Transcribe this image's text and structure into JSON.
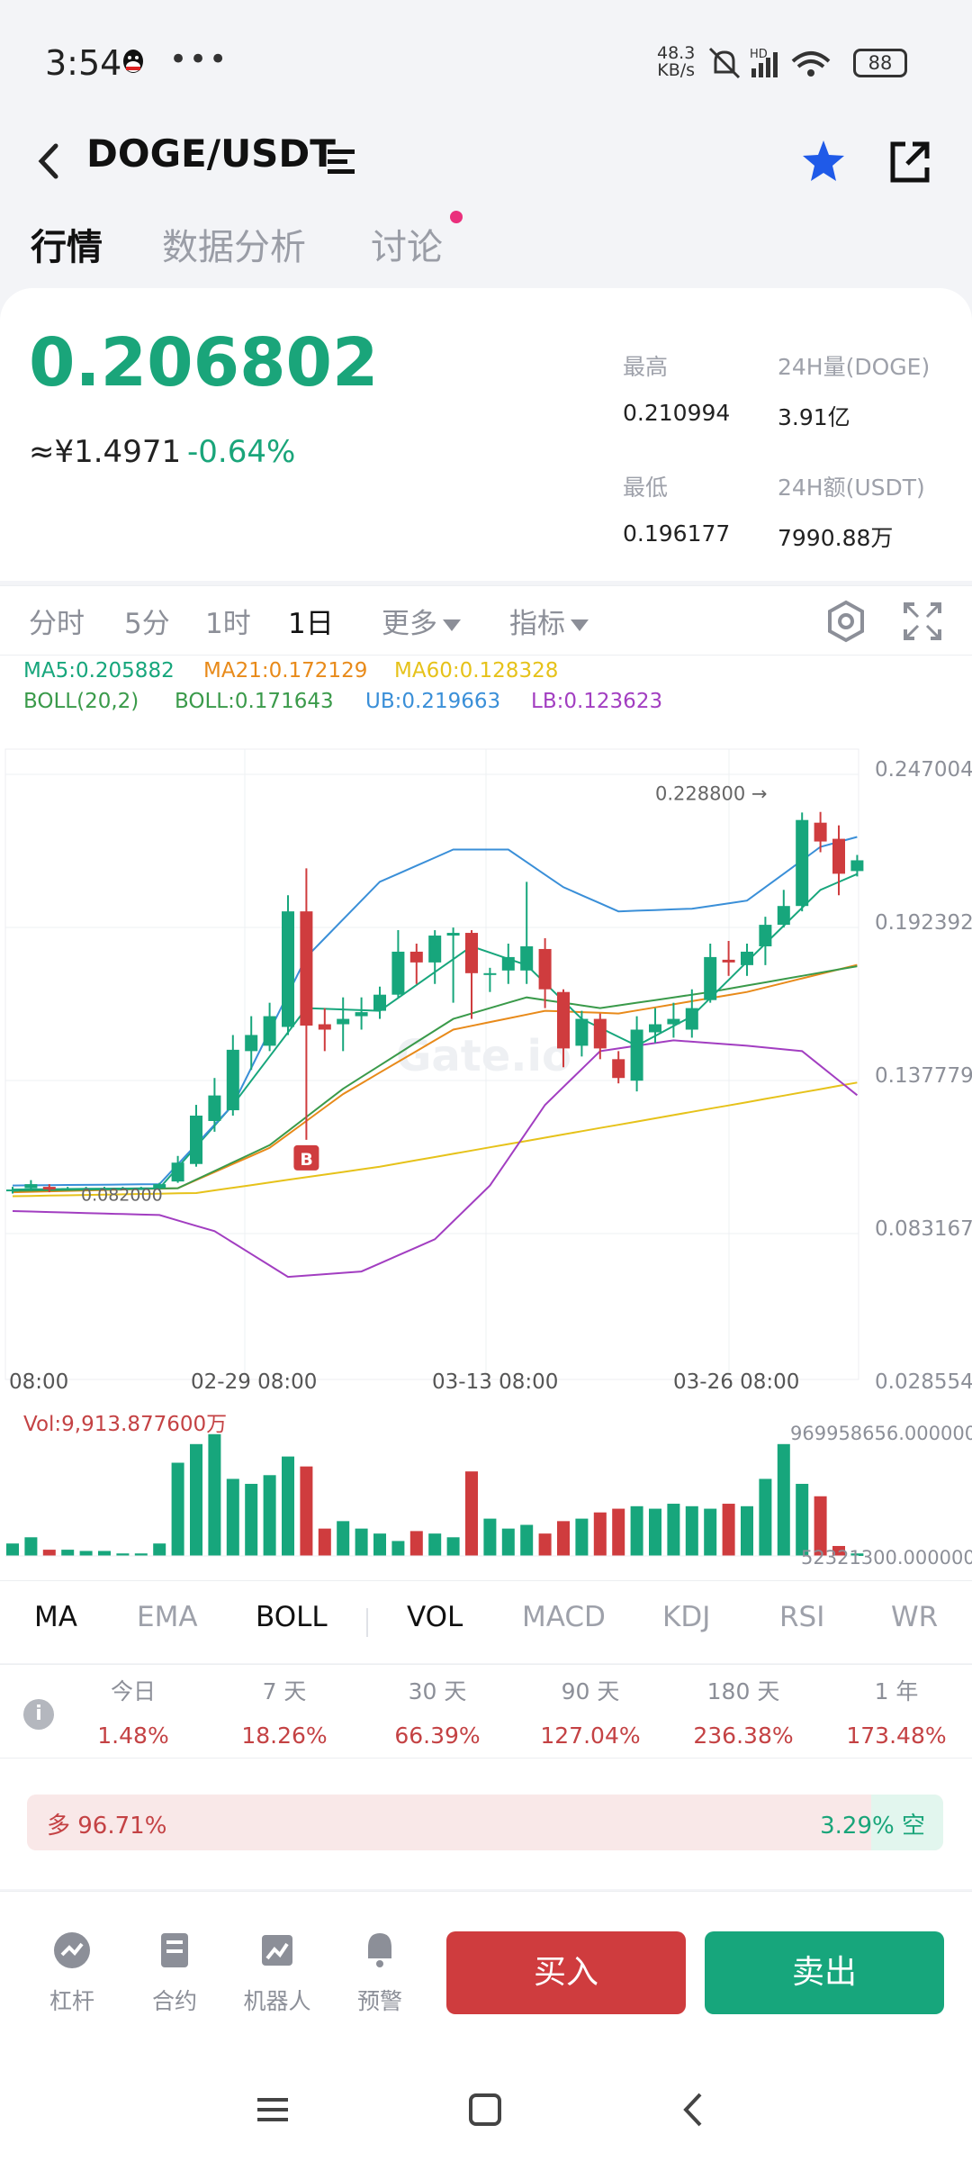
{
  "status": {
    "time": "3:54",
    "speed_value": "48.3",
    "speed_unit": "KB/s",
    "battery": "88"
  },
  "header": {
    "pair": "DOGE/USDT"
  },
  "tabs": [
    {
      "label": "行情"
    },
    {
      "label": "数据分析"
    },
    {
      "label": "讨论"
    }
  ],
  "price": {
    "last": "0.206802",
    "cny": "≈¥1.4971",
    "change": "-0.64%",
    "high_label": "最高",
    "high": "0.210994",
    "low_label": "最低",
    "low": "0.196177",
    "vol_label": "24H量(DOGE)",
    "vol": "3.91亿",
    "amt_label": "24H额(USDT)",
    "amt": "7990.88万"
  },
  "timeframes": [
    {
      "label": "分时"
    },
    {
      "label": "5分"
    },
    {
      "label": "1时"
    },
    {
      "label": "1日"
    },
    {
      "label": "更多"
    },
    {
      "label": "指标"
    }
  ],
  "indicators": {
    "ma5": "MA5:0.205882",
    "ma21": "MA21:0.172129",
    "ma60": "MA60:0.128328",
    "boll": "BOLL(20,2)",
    "boll_mid": "BOLL:0.171643",
    "ub": "UB:0.219663",
    "lb": "LB:0.123623"
  },
  "colors": {
    "up": "#17a67c",
    "down": "#cf3c3e",
    "ma5": "#17a67c",
    "ma21": "#e88a1a",
    "ma60": "#e6c21a",
    "ub": "#3a8fd8",
    "lb": "#a23ec1",
    "mid": "#3a9a4a"
  },
  "chart_data": {
    "type": "candlestick",
    "y_ticks": [
      "0.247004",
      "0.192392",
      "0.137779",
      "0.083167",
      "0.028554"
    ],
    "x_ticks": [
      "08:00",
      "02-29 08:00",
      "03-13 08:00",
      "03-26 08:00"
    ],
    "ylim": [
      0.028554,
      0.247004
    ],
    "high_marker": "0.228800 →",
    "low_marker": "0.082000",
    "buy_marker": "B",
    "vol_label": "Vol:9,913.877600万",
    "vol_top": "969958656.000000",
    "vol_bottom": "52321300.000000"
  },
  "indicator_tabs": [
    {
      "label": "MA"
    },
    {
      "label": "EMA"
    },
    {
      "label": "BOLL"
    },
    {
      "label": "VOL"
    },
    {
      "label": "MACD"
    },
    {
      "label": "KDJ"
    },
    {
      "label": "RSI"
    },
    {
      "label": "WR"
    }
  ],
  "performance": [
    {
      "label": "今日",
      "value": "1.48%"
    },
    {
      "label": "7 天",
      "value": "18.26%"
    },
    {
      "label": "30 天",
      "value": "66.39%"
    },
    {
      "label": "90 天",
      "value": "127.04%"
    },
    {
      "label": "180 天",
      "value": "236.38%"
    },
    {
      "label": "1 年",
      "value": "173.48%"
    }
  ],
  "long_short": {
    "long": "多 96.71%",
    "short": "3.29% 空"
  },
  "footer": {
    "items": [
      {
        "label": "杠杆"
      },
      {
        "label": "合约"
      },
      {
        "label": "机器人"
      },
      {
        "label": "预警"
      }
    ],
    "buy": "买入",
    "sell": "卖出"
  }
}
